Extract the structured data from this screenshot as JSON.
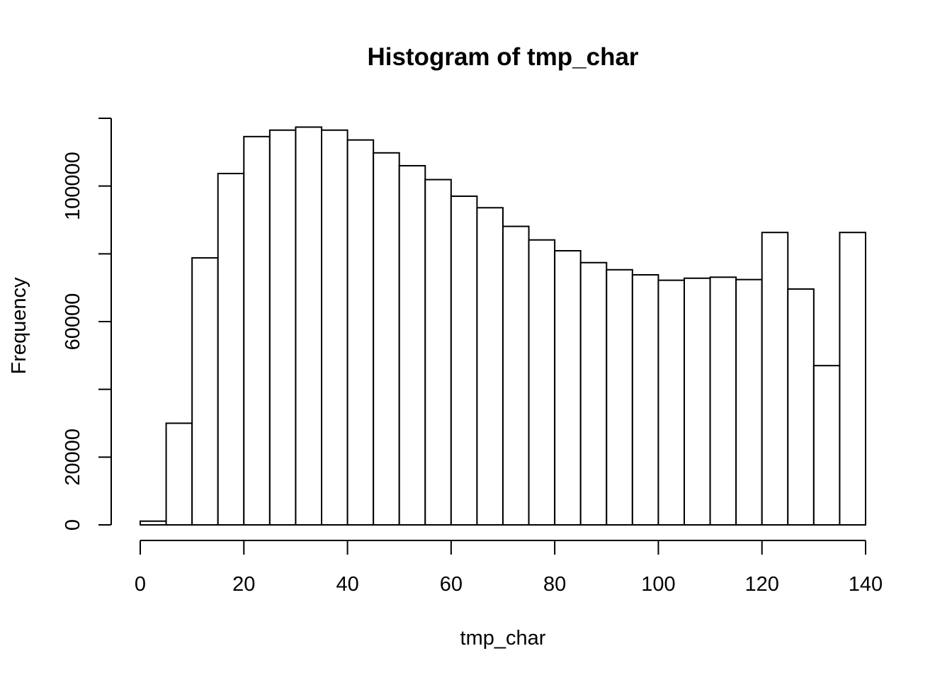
{
  "chart_data": {
    "type": "bar",
    "subtype": "histogram",
    "title": "Histogram of tmp_char",
    "xlabel": "tmp_char",
    "ylabel": "Frequency",
    "bin_width": 5,
    "bins": [
      {
        "start": 0,
        "end": 5,
        "count": 1100
      },
      {
        "start": 5,
        "end": 10,
        "count": 30000
      },
      {
        "start": 10,
        "end": 15,
        "count": 78800
      },
      {
        "start": 15,
        "end": 20,
        "count": 103700
      },
      {
        "start": 20,
        "end": 25,
        "count": 114600
      },
      {
        "start": 25,
        "end": 30,
        "count": 116500
      },
      {
        "start": 30,
        "end": 35,
        "count": 117400
      },
      {
        "start": 35,
        "end": 40,
        "count": 116500
      },
      {
        "start": 40,
        "end": 45,
        "count": 113600
      },
      {
        "start": 45,
        "end": 50,
        "count": 109800
      },
      {
        "start": 50,
        "end": 55,
        "count": 106000
      },
      {
        "start": 55,
        "end": 60,
        "count": 101900
      },
      {
        "start": 60,
        "end": 65,
        "count": 97000
      },
      {
        "start": 65,
        "end": 70,
        "count": 93600
      },
      {
        "start": 70,
        "end": 75,
        "count": 88100
      },
      {
        "start": 75,
        "end": 80,
        "count": 84100
      },
      {
        "start": 80,
        "end": 85,
        "count": 80900
      },
      {
        "start": 85,
        "end": 90,
        "count": 77400
      },
      {
        "start": 90,
        "end": 95,
        "count": 75300
      },
      {
        "start": 95,
        "end": 100,
        "count": 73800
      },
      {
        "start": 100,
        "end": 105,
        "count": 72200
      },
      {
        "start": 105,
        "end": 110,
        "count": 72800
      },
      {
        "start": 110,
        "end": 115,
        "count": 73100
      },
      {
        "start": 115,
        "end": 120,
        "count": 72400
      },
      {
        "start": 120,
        "end": 125,
        "count": 86300
      },
      {
        "start": 125,
        "end": 130,
        "count": 69600
      },
      {
        "start": 130,
        "end": 135,
        "count": 47000
      },
      {
        "start": 135,
        "end": 140,
        "count": 86300
      }
    ],
    "xlim": [
      0,
      140
    ],
    "ylim": [
      0,
      120000
    ],
    "x_ticks": [
      0,
      20,
      40,
      60,
      80,
      100,
      120,
      140
    ],
    "y_ticks": [
      0,
      20000,
      40000,
      60000,
      80000,
      100000,
      120000
    ],
    "y_tick_labels": [
      "0",
      "20000",
      "",
      "60000",
      "",
      "100000",
      ""
    ],
    "grid": false,
    "legend": "none"
  }
}
